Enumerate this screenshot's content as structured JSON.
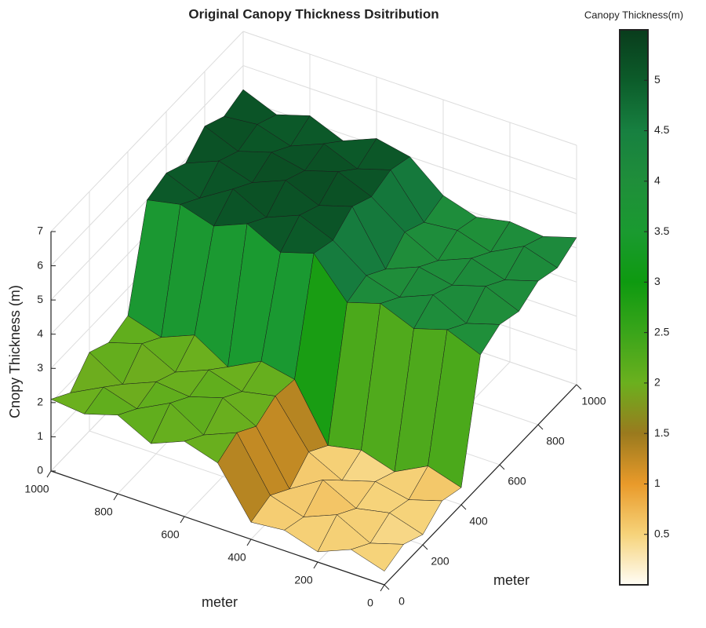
{
  "chart_data": {
    "type": "surface",
    "title": "Original Canopy Thickness Dsitribution",
    "xlabel": "meter",
    "ylabel": "meter",
    "zlabel": "Cnopy Thickness (m)",
    "colorbar_label": "Canopy Thickness(m)",
    "x": [
      0,
      100,
      200,
      300,
      400,
      500,
      600,
      700,
      800,
      900,
      1000
    ],
    "y": [
      0,
      100,
      200,
      300,
      400,
      500,
      600,
      700,
      800,
      900,
      1000
    ],
    "z": [
      [
        0.4,
        0.7,
        0.3,
        0.6,
        0.5,
        1.9,
        2.2,
        1.8,
        2.3,
        2.0,
        2.1
      ],
      [
        0.6,
        0.3,
        0.8,
        0.4,
        0.7,
        2.2,
        1.8,
        2.4,
        1.9,
        2.2,
        1.7
      ],
      [
        0.3,
        0.6,
        0.4,
        0.9,
        0.3,
        1.8,
        2.3,
        2.0,
        2.1,
        1.7,
        2.3
      ],
      [
        0.7,
        0.4,
        0.6,
        0.3,
        0.8,
        2.1,
        1.9,
        2.2,
        1.8,
        2.3,
        2.0
      ],
      [
        0.5,
        0.8,
        0.3,
        0.6,
        0.4,
        2.0,
        2.2,
        1.7,
        2.3,
        1.9,
        2.2
      ],
      [
        3.8,
        4.2,
        3.9,
        4.3,
        4.0,
        5.1,
        4.8,
        5.3,
        4.9,
        5.2,
        5.0
      ],
      [
        4.1,
        3.8,
        4.3,
        3.9,
        4.2,
        4.9,
        5.3,
        4.9,
        5.4,
        4.8,
        5.2
      ],
      [
        3.9,
        4.3,
        4.0,
        4.2,
        3.8,
        5.3,
        5.0,
        5.4,
        5.0,
        5.3,
        4.9
      ],
      [
        4.2,
        3.9,
        4.2,
        3.8,
        4.3,
        5.0,
        5.4,
        5.1,
        5.3,
        5.0,
        5.4
      ],
      [
        4.0,
        4.3,
        3.8,
        4.1,
        4.0,
        5.2,
        4.9,
        5.3,
        4.9,
        5.2,
        5.1
      ],
      [
        4.3,
        4.0,
        4.1,
        3.9,
        4.2,
        5.0,
        5.2,
        4.8,
        5.2,
        4.9,
        5.3
      ]
    ],
    "xlim": [
      0,
      1000
    ],
    "xticks": [
      0,
      200,
      400,
      600,
      800,
      1000
    ],
    "ylim": [
      0,
      1000
    ],
    "yticks": [
      0,
      200,
      400,
      600,
      800,
      1000
    ],
    "zlim": [
      0,
      7
    ],
    "zticks": [
      0,
      1,
      2,
      3,
      4,
      5,
      6,
      7
    ],
    "clim": [
      0,
      5.5
    ],
    "cticks": [
      0.5,
      1,
      1.5,
      2,
      2.5,
      3,
      3.5,
      4,
      4.5,
      5
    ],
    "colormap": [
      "#fffdf6",
      "#f6d37a",
      "#e99a2a",
      "#9a7a1e",
      "#6bb01e",
      "#3aa51a",
      "#0e9a10",
      "#1a9a30",
      "#1f8e3a",
      "#178040",
      "#0c5c2a",
      "#093c1c"
    ],
    "grid": true
  }
}
